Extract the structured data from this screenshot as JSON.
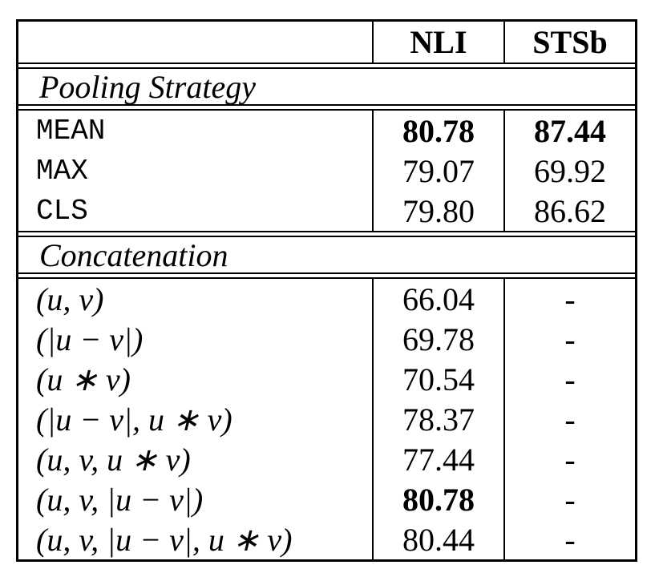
{
  "page": {
    "background_color": "#ffffff",
    "text_color": "#000000"
  },
  "table": {
    "columns": [
      "",
      "NLI",
      "STSb"
    ],
    "sections": [
      {
        "title": "Pooling Strategy",
        "rows": [
          {
            "label": "MEAN",
            "nli": "80.78",
            "stsb": "87.44"
          },
          {
            "label": "MAX",
            "nli": "79.07",
            "stsb": "69.92"
          },
          {
            "label": "CLS",
            "nli": "79.80",
            "stsb": "86.62"
          }
        ]
      },
      {
        "title": "Concatenation",
        "rows": [
          {
            "label": "(u, v)",
            "nli": "66.04",
            "stsb": "-"
          },
          {
            "label": "(|u − v|)",
            "nli": "69.78",
            "stsb": "-"
          },
          {
            "label": "(u ∗ v)",
            "nli": "70.54",
            "stsb": "-"
          },
          {
            "label": "(|u − v|, u ∗ v)",
            "nli": "78.37",
            "stsb": "-"
          },
          {
            "label": "(u, v, u ∗ v)",
            "nli": "77.44",
            "stsb": "-"
          },
          {
            "label": "(u, v, |u − v|)",
            "nli": "80.78",
            "stsb": "-"
          },
          {
            "label": "(u, v, |u − v|, u ∗ v)",
            "nli": "80.44",
            "stsb": "-"
          }
        ]
      }
    ]
  }
}
